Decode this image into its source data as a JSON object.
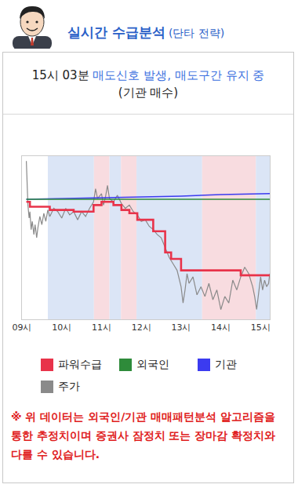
{
  "header": {
    "title": "실시간 수급분석",
    "subtitle": "(단타 전략)"
  },
  "signal": {
    "time": "15시 03분",
    "text": "매도신호 발생, 매도구간 유지 중",
    "note": "(기관 매수)"
  },
  "chart_data": {
    "type": "line",
    "xlim": [
      9.0,
      15.23
    ],
    "xticks": [
      {
        "value": 9,
        "label": "09시"
      },
      {
        "value": 10,
        "label": "10시"
      },
      {
        "value": 11,
        "label": "11시"
      },
      {
        "value": 12,
        "label": "12시"
      },
      {
        "value": 13,
        "label": "13시"
      },
      {
        "value": 14,
        "label": "14시"
      },
      {
        "value": 15,
        "label": "15시"
      }
    ],
    "ylim": [
      0,
      100
    ],
    "tick_labels": "x",
    "grid": false,
    "bands": [
      {
        "start": 9.65,
        "end": 10.81,
        "color": "#dbe5f6"
      },
      {
        "start": 10.81,
        "end": 11.2,
        "color": "#f8dce0"
      },
      {
        "start": 11.2,
        "end": 11.49,
        "color": "#dbe5f6"
      },
      {
        "start": 11.49,
        "end": 11.88,
        "color": "#f8dce0"
      },
      {
        "start": 11.88,
        "end": 13.53,
        "color": "#dbe5f6"
      },
      {
        "start": 13.53,
        "end": 14.88,
        "color": "#f8dce0"
      },
      {
        "start": 14.88,
        "end": 15.23,
        "color": "#dbe5f6"
      }
    ],
    "series": [
      {
        "name": "파워수급",
        "color": "#e8334a",
        "line_style": "step",
        "x": [
          9.11,
          9.2,
          9.7,
          10.3,
          10.8,
          11.0,
          11.3,
          11.5,
          11.7,
          11.9,
          12.3,
          12.6,
          12.75,
          13.0,
          14.5,
          15.23
        ],
        "values": [
          72,
          69,
          67,
          66,
          70,
          72,
          70,
          67,
          65,
          61,
          54,
          41,
          37,
          30,
          27,
          27
        ]
      },
      {
        "name": "외국인",
        "color": "#2e8b3a",
        "line_style": "solid",
        "x": [
          9.11,
          15.23
        ],
        "values": [
          73.6,
          73.6
        ]
      },
      {
        "name": "기관",
        "color": "#3b3bf0",
        "line_style": "solid",
        "x": [
          9.11,
          10.0,
          11.0,
          12.0,
          13.0,
          14.0,
          15.23
        ],
        "values": [
          73.5,
          74,
          74.5,
          75,
          75.5,
          76.5,
          77
        ]
      },
      {
        "name": "주가",
        "color": "#8a8a8a",
        "line_style": "thin",
        "x": [
          9.11,
          9.13,
          9.15,
          9.18,
          9.2,
          9.23,
          9.26,
          9.3,
          9.33,
          9.37,
          9.4,
          9.45,
          9.5,
          9.55,
          9.6,
          9.65,
          9.7,
          9.8,
          9.9,
          10.0,
          10.1,
          10.2,
          10.3,
          10.4,
          10.5,
          10.6,
          10.7,
          10.8,
          10.85,
          10.9,
          11.0,
          11.05,
          11.1,
          11.15,
          11.2,
          11.3,
          11.4,
          11.5,
          11.6,
          11.7,
          11.8,
          11.9,
          12.0,
          12.1,
          12.2,
          12.3,
          12.4,
          12.5,
          12.6,
          12.7,
          12.8,
          12.9,
          13.0,
          13.05,
          13.1,
          13.15,
          13.2,
          13.3,
          13.4,
          13.5,
          13.6,
          13.7,
          13.8,
          13.9,
          14.0,
          14.1,
          14.2,
          14.3,
          14.4,
          14.5,
          14.6,
          14.7,
          14.8,
          14.85,
          14.9,
          14.95,
          15.0,
          15.05,
          15.1,
          15.15,
          15.2,
          15.23
        ],
        "values": [
          97,
          85,
          70,
          62,
          66,
          55,
          60,
          52,
          58,
          50,
          56,
          63,
          58,
          65,
          60,
          67,
          63,
          68,
          66,
          62,
          68,
          64,
          66,
          61,
          66,
          63,
          68,
          72,
          80,
          74,
          77,
          70,
          75,
          82,
          74,
          72,
          76,
          71,
          68,
          70,
          66,
          64,
          60,
          61,
          57,
          55,
          52,
          50,
          44,
          38,
          34,
          30,
          20,
          10,
          18,
          28,
          22,
          26,
          15,
          20,
          14,
          22,
          12,
          18,
          6,
          14,
          10,
          24,
          18,
          26,
          32,
          28,
          20,
          14,
          6,
          16,
          26,
          18,
          24,
          20,
          22,
          28
        ]
      }
    ]
  },
  "disclaimer": "※ 위 데이터는 외국인/기관 매매패턴분석 알고리즘을 통한 추정치이며 증권사 잠정치 또는 장마감 확정치와 다를 수 있습니다."
}
